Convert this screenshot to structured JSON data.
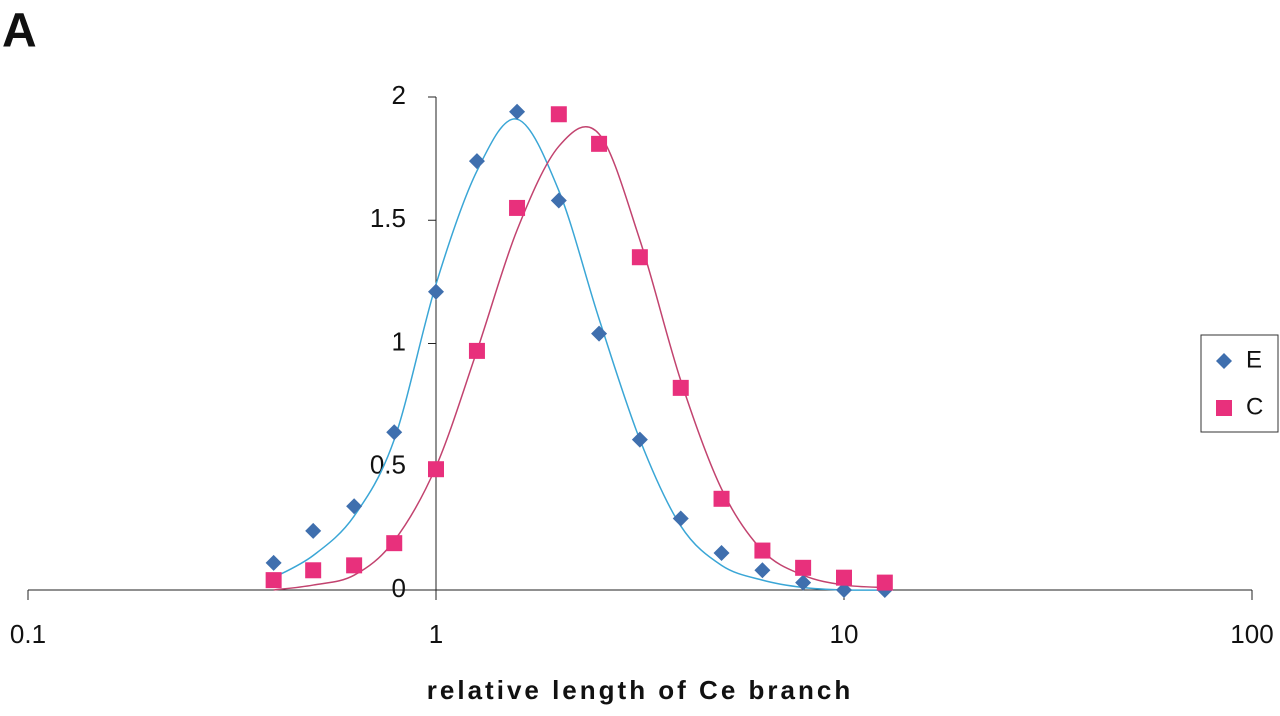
{
  "chart_data": {
    "type": "scatter",
    "panel_label": "A",
    "x_label": "relative length of Ce branch",
    "x": [
      0.4,
      0.5,
      0.63,
      0.79,
      1,
      1.26,
      1.58,
      2,
      2.51,
      3.16,
      3.98,
      5.01,
      6.31,
      7.94,
      10,
      12.59
    ],
    "series": [
      {
        "name": "E",
        "color": "#3f6fae",
        "marker": "diamond",
        "line_color": "#3aa6d6",
        "values": [
          0.11,
          0.24,
          0.34,
          0.64,
          1.21,
          1.74,
          1.94,
          1.58,
          1.04,
          0.61,
          0.29,
          0.15,
          0.08,
          0.03,
          0,
          0
        ],
        "fit_values": [
          0.05,
          0.14,
          0.3,
          0.61,
          1.24,
          1.7,
          1.91,
          1.62,
          1.1,
          0.61,
          0.26,
          0.1,
          0.04,
          0.01,
          0,
          0
        ]
      },
      {
        "name": "C",
        "color": "#e8307c",
        "marker": "square",
        "line_color": "#c2436f",
        "values": [
          0.04,
          0.08,
          0.1,
          0.19,
          0.49,
          0.97,
          1.55,
          1.93,
          1.81,
          1.35,
          0.82,
          0.37,
          0.16,
          0.09,
          0.05,
          0.03
        ],
        "fit_values": [
          0,
          0.02,
          0.06,
          0.2,
          0.5,
          0.97,
          1.46,
          1.8,
          1.85,
          1.42,
          0.85,
          0.41,
          0.16,
          0.06,
          0.02,
          0.01
        ]
      }
    ],
    "xscale": "log",
    "xlim": [
      0.1,
      100
    ],
    "xticks": [
      0.1,
      1,
      10,
      100
    ],
    "ylim": [
      0,
      2
    ],
    "yticks": [
      0,
      0.5,
      1,
      1.5,
      2
    ],
    "y_axis_at_x": 1,
    "grid": false,
    "legend": "right"
  }
}
